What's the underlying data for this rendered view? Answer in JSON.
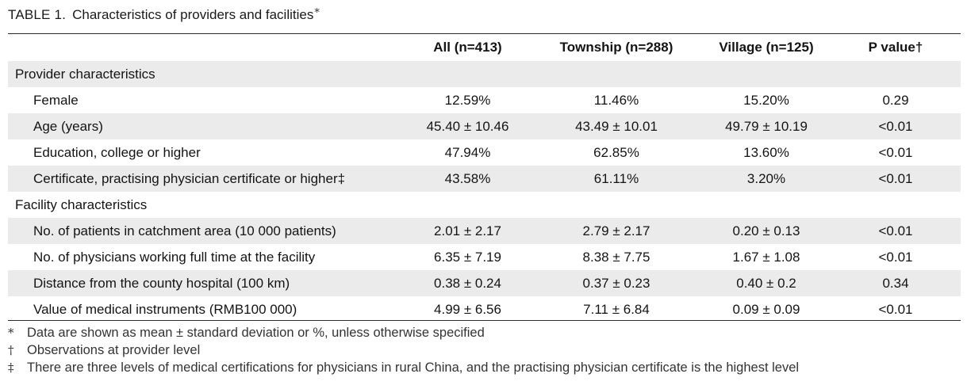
{
  "caption": {
    "label": "TABLE 1.",
    "title": "Characteristics of providers and facilities",
    "symbol": "*"
  },
  "columns": [
    "",
    "All (n=413)",
    "Township (n=288)",
    "Village (n=125)",
    "P value†"
  ],
  "sections": [
    {
      "title": "Provider characteristics",
      "rows": [
        {
          "label": "Female",
          "all": "12.59%",
          "township": "11.46%",
          "village": "15.20%",
          "p": "0.29"
        },
        {
          "label": "Age (years)",
          "all": "45.40 ± 10.46",
          "township": "43.49 ± 10.01",
          "village": "49.79 ± 10.19",
          "p": "<0.01"
        },
        {
          "label": "Education, college or higher",
          "all": "47.94%",
          "township": "62.85%",
          "village": "13.60%",
          "p": "<0.01"
        },
        {
          "label": "Certificate, practising physician certificate or higher‡",
          "all": "43.58%",
          "township": "61.11%",
          "village": "3.20%",
          "p": "<0.01"
        }
      ]
    },
    {
      "title": "Facility characteristics",
      "rows": [
        {
          "label": "No. of patients in catchment area (10 000 patients)",
          "all": "2.01 ± 2.17",
          "township": "2.79 ± 2.17",
          "village": "0.20 ± 0.13",
          "p": "<0.01"
        },
        {
          "label": "No. of physicians working full time at the facility",
          "all": "6.35 ± 7.19",
          "township": "8.38 ± 7.75",
          "village": "1.67 ± 1.08",
          "p": "<0.01"
        },
        {
          "label": "Distance from the county hospital (100 km)",
          "all": "0.38 ± 0.24",
          "township": "0.37 ± 0.23",
          "village": "0.40 ± 0.2",
          "p": "0.34"
        },
        {
          "label": "Value of medical instruments (RMB100 000)",
          "all": "4.99 ± 6.56",
          "township": "7.11 ± 6.84",
          "village": "0.09 ± 0.09",
          "p": "<0.01"
        }
      ]
    }
  ],
  "footnotes": [
    {
      "mark": "*",
      "text": "Data are shown as mean ± standard deviation or %, unless otherwise specified"
    },
    {
      "mark": "†",
      "text": "Observations at provider level"
    },
    {
      "mark": "‡",
      "text": "There are three levels of medical certifications for physicians in rural China, and the practising physician certificate is the highest level"
    }
  ]
}
